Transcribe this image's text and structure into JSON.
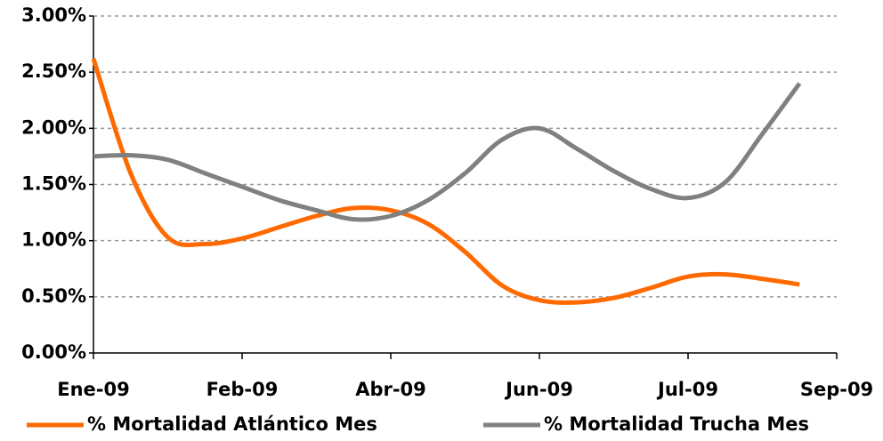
{
  "chart_data": {
    "type": "line",
    "categories": [
      "Ene-09",
      null,
      null,
      null,
      "Feb-09",
      null,
      null,
      null,
      "Abr-09",
      null,
      null,
      null,
      "Jun-09",
      null,
      null,
      null,
      "Jul-09",
      null,
      null,
      null,
      "Sep-09"
    ],
    "series": [
      {
        "name": "% Mortalidad Atlántico Mes",
        "color": "#ff6a00",
        "values": [
          2.62,
          1.6,
          1.03,
          0.97,
          1.02,
          1.12,
          1.22,
          1.29,
          1.27,
          1.15,
          0.9,
          0.6,
          0.47,
          0.45,
          0.49,
          0.58,
          0.68,
          0.7,
          0.66,
          0.61,
          null
        ]
      },
      {
        "name": "% Mortalidad Trucha Mes",
        "color": "#808080",
        "values": [
          1.75,
          1.76,
          1.72,
          1.6,
          1.48,
          1.36,
          1.27,
          1.19,
          1.22,
          1.36,
          1.6,
          1.9,
          2.0,
          1.82,
          1.62,
          1.46,
          1.38,
          1.52,
          1.95,
          2.4,
          null
        ]
      }
    ],
    "ylim": [
      0,
      3
    ],
    "yticks": [
      {
        "value": 0,
        "label": "0.00%"
      },
      {
        "value": 0.5,
        "label": "0.50%"
      },
      {
        "value": 1,
        "label": "1.00%"
      },
      {
        "value": 1.5,
        "label": "1.50%"
      },
      {
        "value": 2,
        "label": "2.00%"
      },
      {
        "value": 2.5,
        "label": "2.50%"
      },
      {
        "value": 3,
        "label": "3.00%"
      }
    ],
    "grid": true,
    "legend": "bottom"
  }
}
